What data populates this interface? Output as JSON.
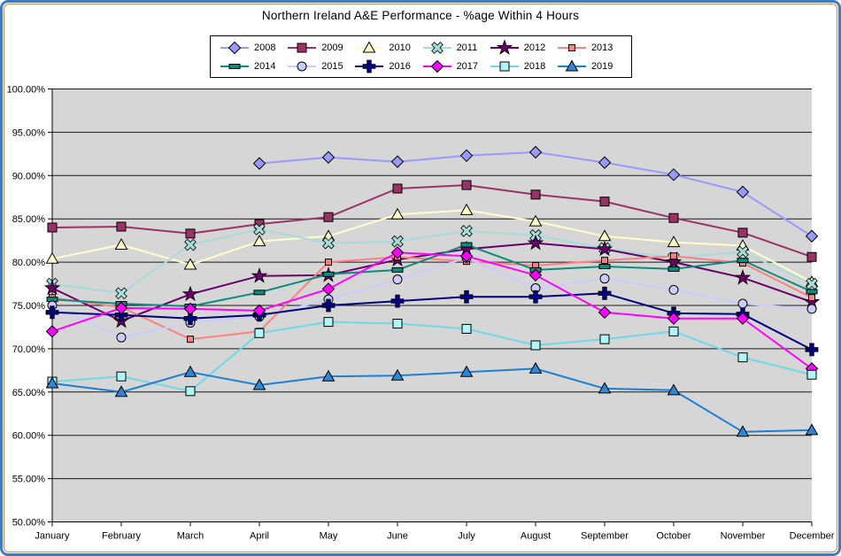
{
  "chart_data": {
    "type": "line",
    "title": "Northern Ireland A&E Performance - %age Within 4 Hours",
    "categories": [
      "January",
      "February",
      "March",
      "April",
      "May",
      "June",
      "July",
      "August",
      "September",
      "October",
      "November",
      "December"
    ],
    "y_axis": {
      "min": 50,
      "max": 100,
      "step": 5,
      "labels": [
        "100.00%",
        "95.00%",
        "90.00%",
        "85.00%",
        "80.00%",
        "75.00%",
        "70.00%",
        "65.00%",
        "60.00%",
        "55.00%",
        "50.00%"
      ]
    },
    "grid": "horizontal",
    "legend_position": "top",
    "plot_background": "#D6D6D6",
    "series": [
      {
        "name": "2008",
        "color": "#9999FF",
        "marker": "diamond",
        "marker_fill": "#9999FF",
        "values": [
          null,
          null,
          null,
          91.4,
          92.1,
          91.6,
          92.3,
          92.7,
          91.5,
          90.1,
          88.1,
          83.0
        ]
      },
      {
        "name": "2009",
        "color": "#993366",
        "marker": "square",
        "marker_fill": "#993366",
        "values": [
          84.0,
          84.1,
          83.3,
          84.4,
          85.2,
          88.5,
          88.9,
          87.8,
          87.0,
          85.1,
          83.4,
          80.6
        ]
      },
      {
        "name": "2010",
        "color": "#FFFFCC",
        "marker": "triangle",
        "marker_fill": "#FFFFCC",
        "values": [
          80.4,
          82.0,
          79.7,
          82.4,
          83.0,
          85.5,
          86.0,
          84.7,
          83.0,
          82.3,
          81.9,
          77.7
        ]
      },
      {
        "name": "2011",
        "color": "#A8DCD9",
        "marker": "x",
        "marker_fill": "#A8DCD9",
        "values": [
          77.5,
          76.4,
          82.0,
          83.8,
          82.2,
          82.4,
          83.6,
          83.1,
          81.6,
          80.5,
          81.2,
          77.5
        ]
      },
      {
        "name": "2012",
        "color": "#660066",
        "marker": "star",
        "marker_fill": "#660066",
        "values": [
          77.0,
          73.2,
          76.3,
          78.4,
          78.5,
          80.3,
          81.5,
          82.2,
          81.5,
          80.0,
          78.2,
          75.4
        ]
      },
      {
        "name": "2013",
        "color": "#FF8080",
        "marker": "square_small",
        "marker_fill": "#FF8080",
        "values": [
          75.9,
          74.8,
          71.1,
          72.0,
          80.0,
          80.6,
          80.1,
          79.6,
          80.2,
          80.7,
          79.9,
          75.9
        ]
      },
      {
        "name": "2014",
        "color": "#0B8C7E",
        "marker": "dash",
        "marker_fill": "#0B8C7E",
        "values": [
          75.7,
          75.2,
          74.9,
          76.5,
          78.6,
          79.1,
          82.0,
          79.1,
          79.5,
          79.2,
          80.2,
          76.6
        ]
      },
      {
        "name": "2015",
        "color": "#CCCCFF",
        "marker": "circle",
        "marker_fill": "#CCCCFF",
        "values": [
          75.0,
          71.3,
          73.0,
          73.7,
          75.7,
          78.0,
          80.5,
          77.0,
          78.1,
          76.8,
          75.2,
          74.6
        ]
      },
      {
        "name": "2016",
        "color": "#000080",
        "marker": "plus",
        "marker_fill": "#000080",
        "values": [
          74.2,
          73.9,
          73.5,
          73.9,
          75.0,
          75.5,
          76.0,
          76.0,
          76.4,
          74.1,
          74.0,
          69.9
        ]
      },
      {
        "name": "2017",
        "color": "#FF00FF",
        "marker": "diamond",
        "marker_fill": "#FF00FF",
        "values": [
          72.0,
          74.7,
          74.6,
          74.4,
          76.9,
          81.1,
          80.7,
          78.5,
          74.2,
          73.5,
          73.5,
          67.7
        ]
      },
      {
        "name": "2018",
        "color": "#6FD9E8",
        "marker": "square",
        "marker_fill": "#AFF7F7",
        "values": [
          66.2,
          66.8,
          65.1,
          71.8,
          73.1,
          72.9,
          72.3,
          70.4,
          71.1,
          72.0,
          69.0,
          67.0
        ]
      },
      {
        "name": "2019",
        "color": "#1B7FD4",
        "marker": "triangle",
        "marker_fill": "#2F87D2",
        "values": [
          66.0,
          65.0,
          67.3,
          65.8,
          66.8,
          66.9,
          67.3,
          67.7,
          65.4,
          65.2,
          60.4,
          60.6
        ]
      }
    ]
  }
}
